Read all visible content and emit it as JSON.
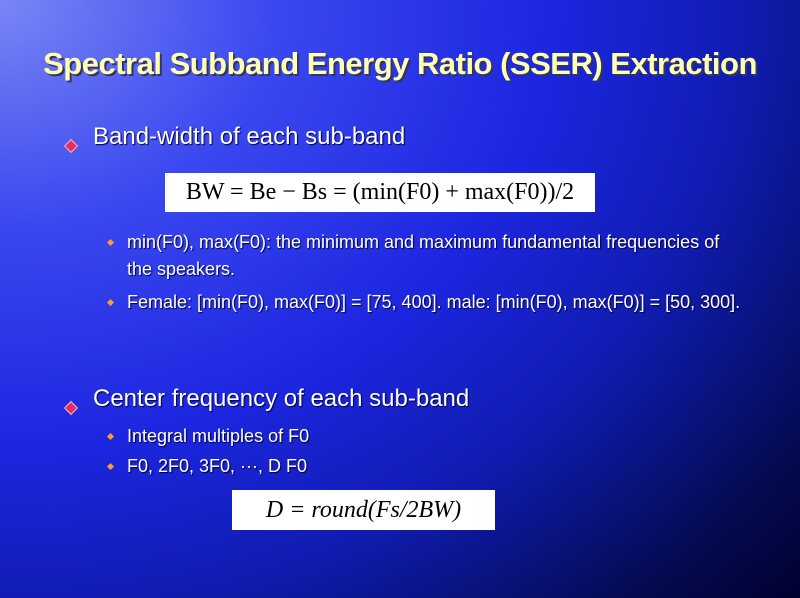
{
  "slide": {
    "title": "Spectral Subband  Energy Ratio (SSER) Extraction",
    "bullets": [
      {
        "text": "Band-width of each sub-band",
        "formula": "BW = Be − Bs = (min(F0) + max(F0))/2",
        "sub": [
          "min(F0), max(F0): the minimum and maximum fundamental frequencies of the speakers.",
          " Female: [min(F0), max(F0)] = [75, 400].   male: [min(F0), max(F0)] = [50, 300]."
        ]
      },
      {
        "text": "Center frequency of each sub-band",
        "sub": [
          "Integral multiples of F0",
          "F0, 2F0, 3F0, ···, D F0"
        ],
        "formula": "D = round(Fs/2BW)"
      }
    ]
  },
  "colors": {
    "title": "#ffffb4",
    "bullet": "#e03060",
    "sub_bullet": "#ff9a30"
  }
}
